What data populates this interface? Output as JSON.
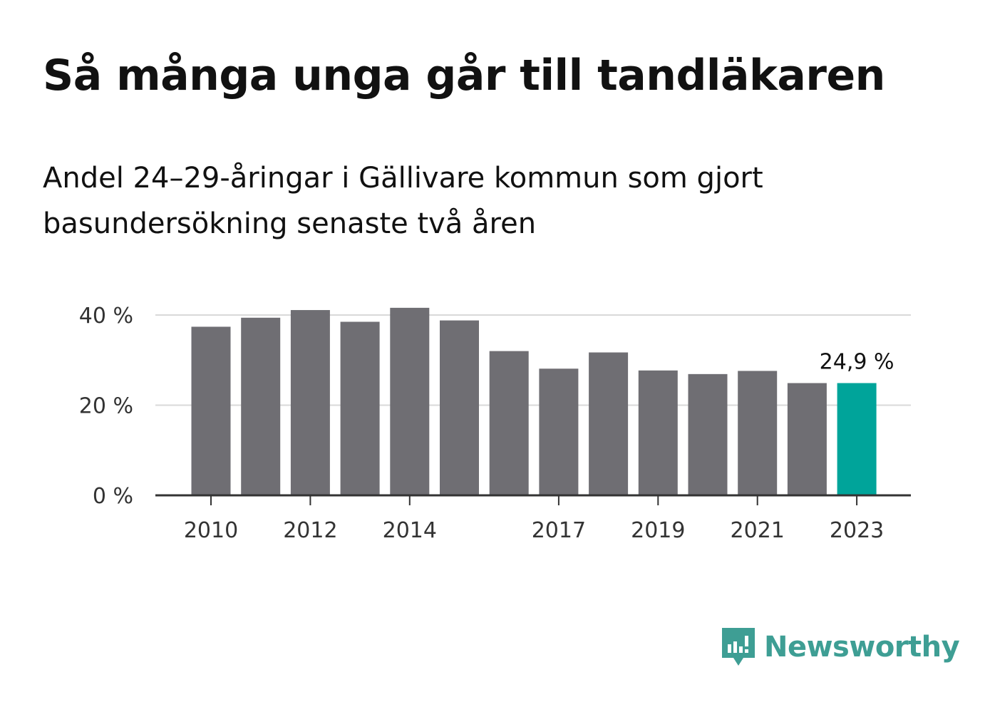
{
  "title": "Så många unga går till tandläkaren",
  "subtitle": "Andel 24–29-åringar i Gällivare kommun som gjort basundersökning senaste två åren",
  "brand": {
    "name": "Newsworthy",
    "icon": "newsworthy-logo-icon",
    "color": "#3e9e94"
  },
  "chart_data": {
    "type": "bar",
    "categories": [
      "2010",
      "2011",
      "2012",
      "2013",
      "2014",
      "2015",
      "2016",
      "2017",
      "2018",
      "2019",
      "2020",
      "2021",
      "2022",
      "2023"
    ],
    "values": [
      37.4,
      39.4,
      41.1,
      38.5,
      41.6,
      38.8,
      32.0,
      28.1,
      31.7,
      27.7,
      26.9,
      27.6,
      24.9,
      24.9
    ],
    "x_tick_labels": [
      "2010",
      "",
      "2012",
      "",
      "2014",
      "",
      "",
      "2017",
      "",
      "2019",
      "",
      "2021",
      "",
      "2023"
    ],
    "y_ticks": [
      0,
      20,
      40
    ],
    "y_tick_labels": [
      "0 %",
      "20 %",
      "40 %"
    ],
    "ylim": [
      0,
      40
    ],
    "highlight_index": 13,
    "highlight_label": "24,9 %",
    "grid": true,
    "colors": {
      "bar": "#6f6e73",
      "highlight": "#00a49a",
      "grid": "#d9d9d9",
      "axis": "#333333"
    }
  }
}
